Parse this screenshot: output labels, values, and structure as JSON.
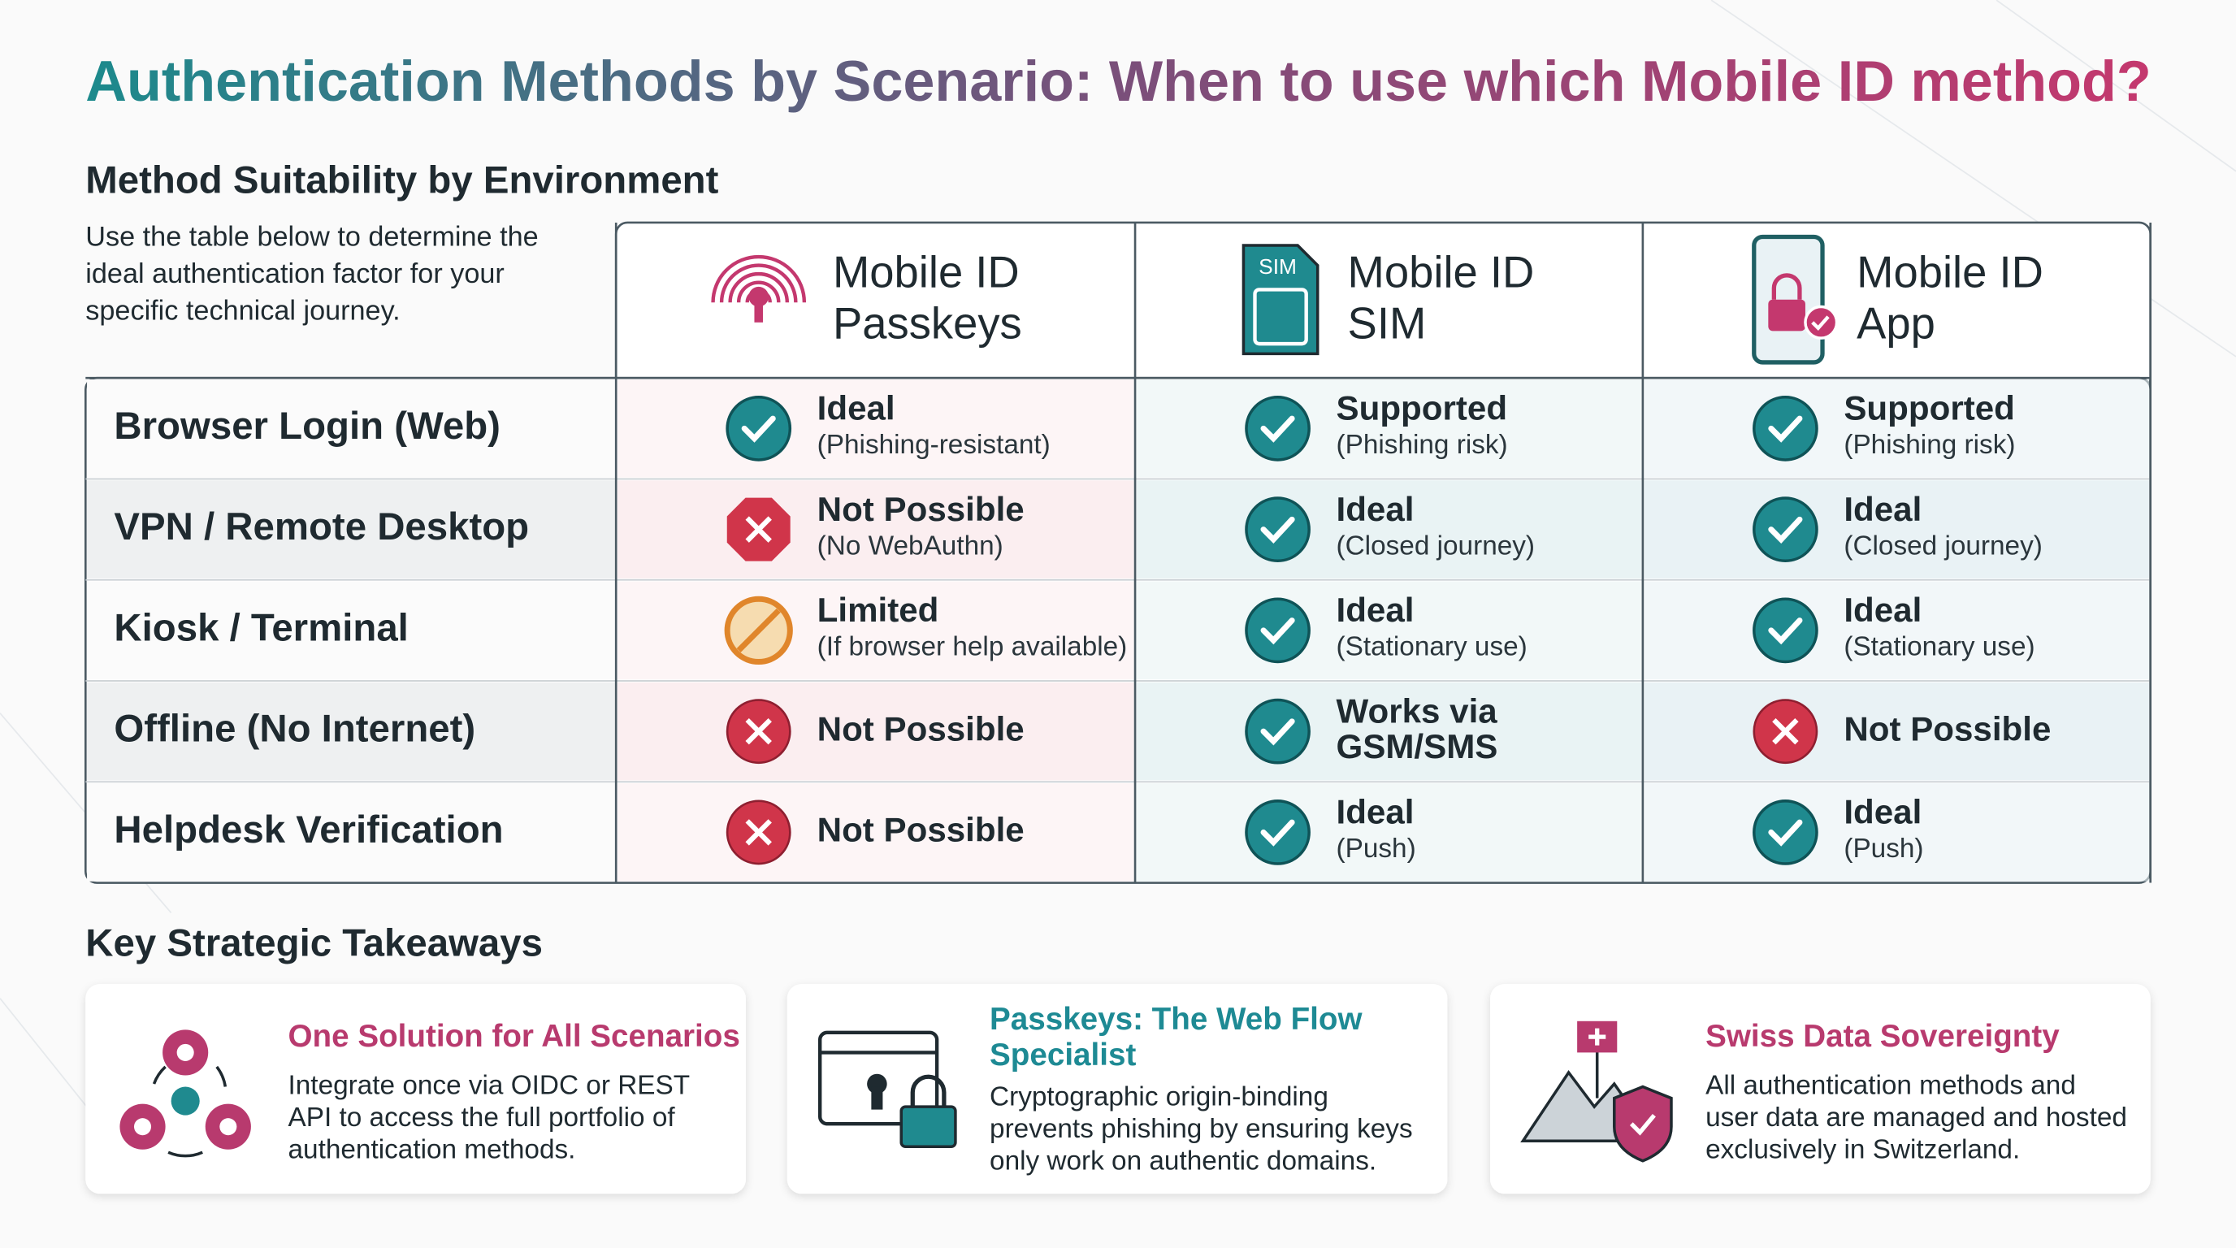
{
  "title": "Authentication Methods by Scenario: When to use which Mobile ID method?",
  "table": {
    "heading": "Method Suitability by Environment",
    "intro": [
      "Use the table below to determine the",
      "ideal authentication factor for your",
      "specific technical journey."
    ],
    "columns": [
      [
        "Mobile ID",
        "Passkeys"
      ],
      [
        "Mobile ID",
        "SIM"
      ],
      [
        "Mobile ID",
        "App"
      ]
    ],
    "rows": [
      {
        "scenario": "Browser Login (Web)",
        "cells": [
          {
            "status": [
              "Ideal"
            ],
            "note": "(Phishing-resistant)"
          },
          {
            "status": [
              "Supported"
            ],
            "note": "(Phishing risk)"
          },
          {
            "status": [
              "Supported"
            ],
            "note": "(Phishing risk)"
          }
        ]
      },
      {
        "scenario": "VPN / Remote Desktop",
        "cells": [
          {
            "status": [
              "Not Possible"
            ],
            "note": "(No WebAuthn)"
          },
          {
            "status": [
              "Ideal"
            ],
            "note": "(Closed journey)"
          },
          {
            "status": [
              "Ideal"
            ],
            "note": "(Closed journey)"
          }
        ]
      },
      {
        "scenario": "Kiosk / Terminal",
        "cells": [
          {
            "status": [
              "Limited"
            ],
            "note": "(If browser help available)"
          },
          {
            "status": [
              "Ideal"
            ],
            "note": "(Stationary use)"
          },
          {
            "status": [
              "Ideal"
            ],
            "note": "(Stationary use)"
          }
        ]
      },
      {
        "scenario": "Offline (No Internet)",
        "cells": [
          {
            "status": [
              "Not Possible"
            ]
          },
          {
            "status": [
              "Works via",
              "GSM/SMS"
            ]
          },
          {
            "status": [
              "Not Possible"
            ]
          }
        ]
      },
      {
        "scenario": "Helpdesk Verification",
        "cells": [
          {
            "status": [
              "Not Possible"
            ]
          },
          {
            "status": [
              "Ideal"
            ],
            "note": "(Push)"
          },
          {
            "status": [
              "Ideal"
            ],
            "note": "(Push)"
          }
        ]
      }
    ]
  },
  "takeaways": {
    "heading": "Key Strategic Takeaways",
    "cards": [
      {
        "title": [
          "One Solution for All Scenarios"
        ],
        "text": [
          "Integrate once via OIDC or REST",
          "API to access the full portfolio of",
          "authentication methods."
        ]
      },
      {
        "title": [
          "Passkeys: The Web Flow",
          "Specialist"
        ],
        "text": [
          "Cryptographic origin-binding",
          "prevents phishing by ensuring keys",
          "only work on authentic domains."
        ]
      },
      {
        "title": [
          "Swiss Data Sovereignty"
        ],
        "text": [
          "All authentication methods and",
          "user data are managed and hosted",
          "exclusively in Switzerland."
        ]
      }
    ]
  }
}
